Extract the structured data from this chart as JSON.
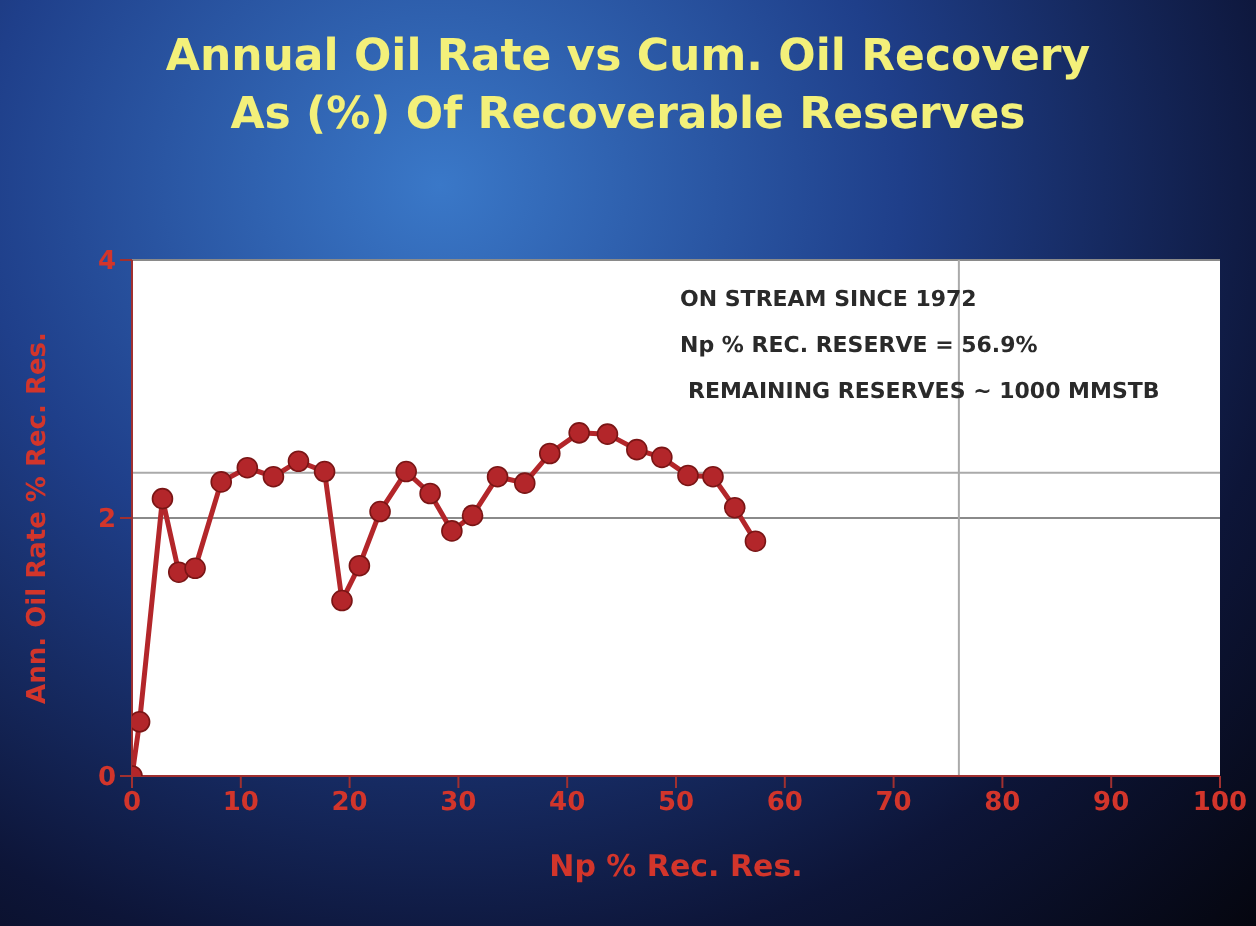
{
  "chart_data": {
    "type": "line",
    "title": "Annual Oil Rate vs Cum. Oil Recovery\nAs (%) Of Recoverable Reserves",
    "xlabel": "Np % Rec. Res.",
    "ylabel": "Ann. Oil Rate % Rec. Res.",
    "x": [
      0,
      0.7,
      2.8,
      4.3,
      5.8,
      8.2,
      10.6,
      13.0,
      15.3,
      17.7,
      19.3,
      20.9,
      22.8,
      25.2,
      27.4,
      29.4,
      31.3,
      33.6,
      36.1,
      38.4,
      41.1,
      43.7,
      46.4,
      48.7,
      51.1,
      53.4,
      55.4,
      57.3
    ],
    "series": [
      {
        "color": "#b3262a",
        "values": [
          0,
          0.42,
          2.15,
          1.58,
          1.61,
          2.28,
          2.39,
          2.32,
          2.44,
          2.36,
          1.36,
          1.63,
          2.05,
          2.36,
          2.19,
          1.9,
          2.02,
          2.32,
          2.27,
          2.5,
          2.66,
          2.65,
          2.53,
          2.47,
          2.33,
          2.32,
          2.08,
          1.82
        ]
      }
    ],
    "xlim": [
      0,
      100
    ],
    "xticks": [
      0,
      10,
      20,
      30,
      40,
      50,
      60,
      70,
      80,
      90,
      100
    ],
    "ylim": [
      0,
      4
    ],
    "yticks": [
      0,
      2,
      4
    ],
    "grid": "y",
    "marker": "circle",
    "line_style": "solid",
    "ref_lines": [
      {
        "axis": "y",
        "value": 2.35,
        "color": "#aaaaaa"
      },
      {
        "axis": "x",
        "value": 76,
        "color": "#aaaaaa"
      }
    ],
    "annotations": [
      "ON STREAM SINCE 1972",
      "Np % REC. RESERVE = 56.9%",
      "REMAINING RESERVES ~ 1000 MMSTB"
    ]
  }
}
